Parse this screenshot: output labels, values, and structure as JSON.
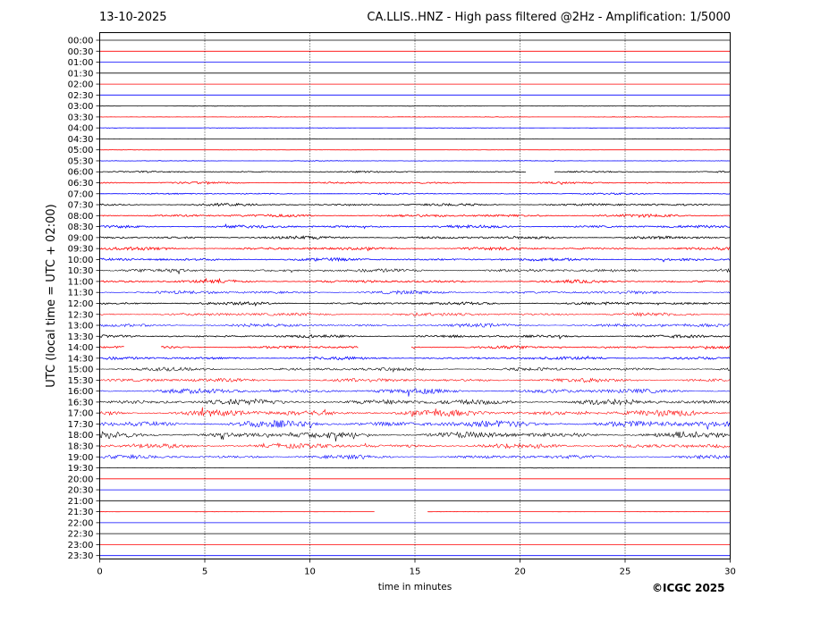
{
  "header": {
    "date": "13-10-2025",
    "title": "CA.LLIS..HNZ - High pass filtered @2Hz - Amplification: 1/5000"
  },
  "footer": {
    "copyright": "©ICGC 2025"
  },
  "chart_data": {
    "type": "line",
    "title": "CA.LLIS..HNZ - High pass filtered @2Hz - Amplification: 1/5000",
    "xlabel": "time in minutes",
    "ylabel": "UTC (local time = UTC + 02:00)",
    "xlim": [
      0,
      30
    ],
    "xticks": [
      0,
      5,
      10,
      15,
      20,
      25,
      30
    ],
    "vertical_grid": [
      5,
      10,
      15,
      20,
      25
    ],
    "rows": [
      "00:00",
      "00:30",
      "01:00",
      "01:30",
      "02:00",
      "02:30",
      "03:00",
      "03:30",
      "04:00",
      "04:30",
      "05:00",
      "05:30",
      "06:00",
      "06:30",
      "07:00",
      "07:30",
      "08:00",
      "08:30",
      "09:00",
      "09:30",
      "10:00",
      "10:30",
      "11:00",
      "11:30",
      "12:00",
      "12:30",
      "13:00",
      "13:30",
      "14:00",
      "14:30",
      "15:00",
      "15:30",
      "16:00",
      "16:30",
      "17:00",
      "17:30",
      "18:00",
      "18:30",
      "19:00",
      "19:30",
      "20:00",
      "20:30",
      "21:00",
      "21:30",
      "22:00",
      "22:30",
      "23:00",
      "23:30"
    ],
    "row_colors": [
      "#000000",
      "#ff0000",
      "#0000ff"
    ],
    "activity_level": [
      0,
      0,
      0,
      0,
      0,
      0,
      0.05,
      0.05,
      0.04,
      0.03,
      0.03,
      0.06,
      0.15,
      0.2,
      0.15,
      0.25,
      0.3,
      0.3,
      0.3,
      0.3,
      0.3,
      0.35,
      0.3,
      0.35,
      0.3,
      0.35,
      0.35,
      0.3,
      0.3,
      0.3,
      0.35,
      0.4,
      0.5,
      0.6,
      0.65,
      0.7,
      0.65,
      0.5,
      0.4,
      0.05,
      0,
      0,
      0,
      0.02,
      0,
      0,
      0,
      0
    ],
    "data_gaps": [
      {
        "row": "06:00",
        "from": 20.3,
        "to": 21.6
      },
      {
        "row": "14:00",
        "from": 1.2,
        "to": 2.9
      },
      {
        "row": "14:00",
        "from": 12.3,
        "to": 14.8
      },
      {
        "row": "21:30",
        "from": 13.1,
        "to": 15.6
      }
    ]
  }
}
